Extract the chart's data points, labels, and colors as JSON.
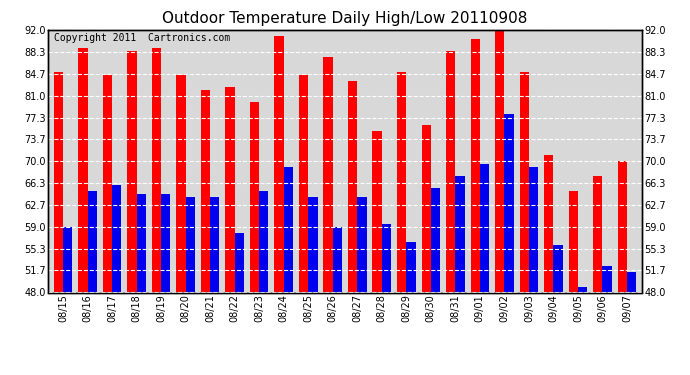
{
  "title": "Outdoor Temperature Daily High/Low 20110908",
  "copyright": "Copyright 2011  Cartronics.com",
  "dates": [
    "08/15",
    "08/16",
    "08/17",
    "08/18",
    "08/19",
    "08/20",
    "08/21",
    "08/22",
    "08/23",
    "08/24",
    "08/25",
    "08/26",
    "08/27",
    "08/28",
    "08/29",
    "08/30",
    "08/31",
    "09/01",
    "09/02",
    "09/03",
    "09/04",
    "09/05",
    "09/06",
    "09/07"
  ],
  "highs": [
    85.0,
    89.0,
    84.5,
    88.5,
    89.0,
    84.5,
    82.0,
    82.5,
    80.0,
    91.0,
    84.5,
    87.5,
    83.5,
    75.0,
    85.0,
    76.0,
    88.5,
    90.5,
    92.0,
    85.0,
    71.0,
    65.0,
    67.5,
    70.0
  ],
  "lows": [
    59.0,
    65.0,
    66.0,
    64.5,
    64.5,
    64.0,
    64.0,
    58.0,
    65.0,
    69.0,
    64.0,
    59.0,
    64.0,
    59.5,
    56.5,
    65.5,
    67.5,
    69.5,
    78.0,
    69.0,
    56.0,
    49.0,
    52.5,
    51.5
  ],
  "high_color": "#ff0000",
  "low_color": "#0000ee",
  "bg_color": "#ffffff",
  "plot_bg_color": "#d8d8d8",
  "grid_color": "#ffffff",
  "ylim": [
    48.0,
    92.0
  ],
  "yticks": [
    48.0,
    51.7,
    55.3,
    59.0,
    62.7,
    66.3,
    70.0,
    73.7,
    77.3,
    81.0,
    84.7,
    88.3,
    92.0
  ],
  "title_fontsize": 11,
  "copyright_fontsize": 7,
  "bar_width": 0.38
}
